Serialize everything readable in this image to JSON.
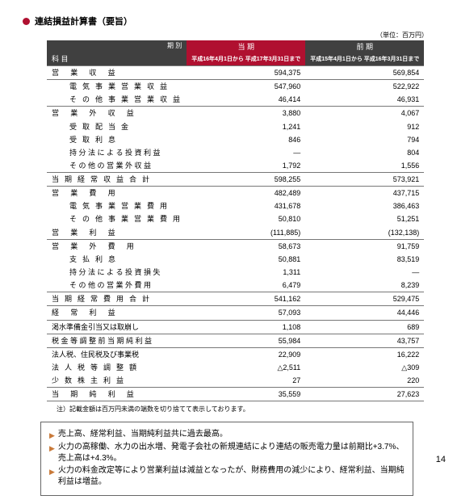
{
  "title": "連結損益計算書（要旨）",
  "unit": "（単位：百万円）",
  "header": {
    "item": "科  目",
    "period": "期  別",
    "current_label": "当  期",
    "prev_label": "前  期",
    "current_sub": "平成16年4月1日から\n平成17年3月31日まで",
    "prev_sub": "平成15年4月1日から\n平成16年3月31日まで"
  },
  "rows": [
    {
      "item": "営  業  収  益",
      "cur": "594,375",
      "prev": "569,854",
      "cls": "item-spread-wide",
      "sep": "both"
    },
    {
      "item": "電 気 事 業 営 業 収 益",
      "cur": "547,960",
      "prev": "522,922",
      "cls": "item-spread item-indent"
    },
    {
      "item": "そ の 他 事 業 営 業 収 益",
      "cur": "46,414",
      "prev": "46,931",
      "cls": "item-spread item-indent"
    },
    {
      "item": "営  業  外  収  益",
      "cur": "3,880",
      "prev": "4,067",
      "cls": "item-spread-wide",
      "sep": "top"
    },
    {
      "item": "受  取  配  当  金",
      "cur": "1,241",
      "prev": "912",
      "cls": "item-spread item-indent"
    },
    {
      "item": "受  取  利  息",
      "cur": "846",
      "prev": "794",
      "cls": "item-spread item-indent"
    },
    {
      "item": "持 分 法 に よ る 投 資 利 益",
      "cur": "—",
      "prev": "804",
      "cls": "item-indent"
    },
    {
      "item": "そ の 他 の 営 業 外 収 益",
      "cur": "1,792",
      "prev": "1,556",
      "cls": "item-indent"
    },
    {
      "item": "当 期 経 常 収 益 合 計",
      "cur": "598,255",
      "prev": "573,921",
      "cls": "item-spread",
      "sep": "both"
    },
    {
      "item": "営  業  費  用",
      "cur": "482,489",
      "prev": "437,715",
      "cls": "item-spread-wide"
    },
    {
      "item": "電 気 事 業 営 業 費 用",
      "cur": "431,678",
      "prev": "386,463",
      "cls": "item-spread item-indent"
    },
    {
      "item": "そ の 他 事 業 営 業 費 用",
      "cur": "50,810",
      "prev": "51,251",
      "cls": "item-spread item-indent"
    },
    {
      "item": "営  業  利  益",
      "cur": "(111,885)",
      "prev": "(132,138)",
      "cls": "item-spread-wide"
    },
    {
      "item": "営  業  外  費  用",
      "cur": "58,673",
      "prev": "91,759",
      "cls": "item-spread-wide",
      "sep": "top"
    },
    {
      "item": "支  払  利  息",
      "cur": "50,881",
      "prev": "83,519",
      "cls": "item-spread item-indent"
    },
    {
      "item": "持 分 法 に よ る 投 資 損 失",
      "cur": "1,311",
      "prev": "—",
      "cls": "item-indent"
    },
    {
      "item": "そ の 他 の 営 業 外 費 用",
      "cur": "6,479",
      "prev": "8,239",
      "cls": "item-indent"
    },
    {
      "item": "当 期 経 常 費 用 合 計",
      "cur": "541,162",
      "prev": "529,475",
      "cls": "item-spread",
      "sep": "both"
    },
    {
      "item": "経  常  利  益",
      "cur": "57,093",
      "prev": "44,446",
      "cls": "item-spread-wide",
      "sep": "btm"
    },
    {
      "item": "渇水準備金引当又は取崩し",
      "cur": "1,108",
      "prev": "689",
      "cls": ""
    },
    {
      "item": "税 金 等 調 整 前 当 期 純 利 益",
      "cur": "55,984",
      "prev": "43,757",
      "cls": "",
      "sep": "top"
    },
    {
      "item": "法人税、住民税及び事業税",
      "cur": "22,909",
      "prev": "16,222",
      "cls": "",
      "sep": "top"
    },
    {
      "item": "法 人 税 等 調 整 額",
      "cur": "△2,511",
      "prev": "△309",
      "cls": "item-spread"
    },
    {
      "item": "少 数 株 主 利 益",
      "cur": "27",
      "prev": "220",
      "cls": "item-spread"
    },
    {
      "item": "当  期  純  利  益",
      "cur": "35,559",
      "prev": "27,623",
      "cls": "item-spread-wide",
      "sep": "both"
    }
  ],
  "footnote": "注）記載金額は百万円未満の端数を切り捨てて表示しております。",
  "summary": [
    "売上高、経常利益、当期純利益共に過去最高。",
    "火力の高稼働、水力の出水増、発電子会社の新規連結により連結の販売電力量は前期比+3.7%、売上高は+4.3%。",
    "火力の料金改定等により営業利益は減益となったが、財務費用の減少により、経常利益、当期純利益は増益。"
  ],
  "page_number": "14"
}
